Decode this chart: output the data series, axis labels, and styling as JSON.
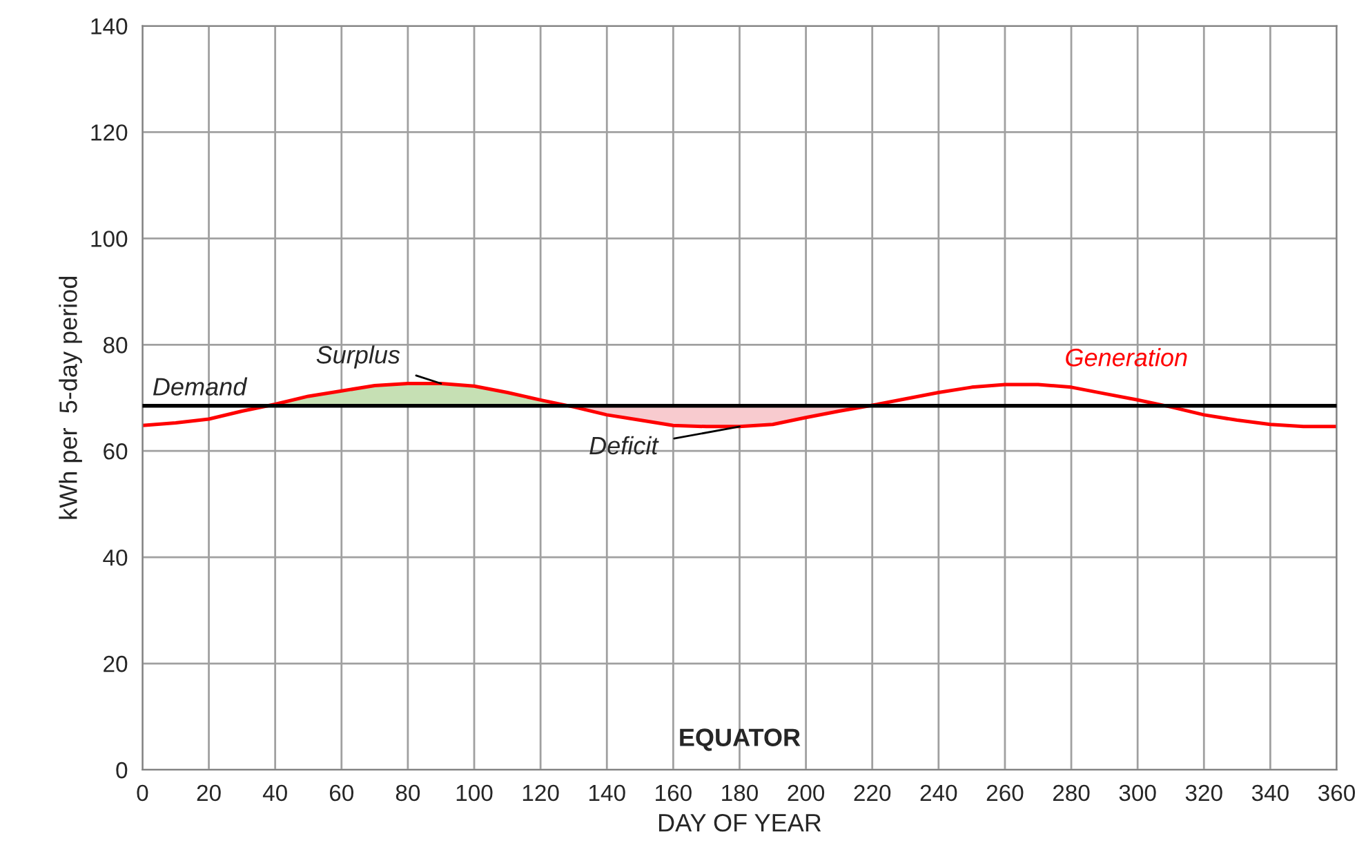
{
  "chart_data": {
    "type": "line",
    "title": "EQUATOR",
    "xlabel": "DAY OF YEAR",
    "ylabel": "kWh per  5-day period",
    "x": [
      0,
      10,
      20,
      30,
      40,
      50,
      60,
      70,
      80,
      90,
      100,
      110,
      120,
      130,
      140,
      150,
      160,
      170,
      180,
      190,
      200,
      210,
      220,
      230,
      240,
      250,
      260,
      270,
      280,
      290,
      300,
      310,
      320,
      330,
      340,
      350,
      360
    ],
    "series": [
      {
        "name": "Generation",
        "color": "#ff0000",
        "values": [
          64.8,
          65.3,
          66,
          67.5,
          68.8,
          70.3,
          71.3,
          72.3,
          72.7,
          72.7,
          72.2,
          71,
          69.6,
          68.3,
          66.8,
          65.8,
          64.8,
          64.6,
          64.6,
          65,
          66.3,
          67.5,
          68.6,
          69.8,
          71,
          72,
          72.5,
          72.5,
          72,
          70.8,
          69.6,
          68.3,
          66.8,
          65.8,
          65,
          64.6,
          64.6
        ]
      },
      {
        "type": "area",
        "color": "#c6e0b4",
        "x": [
          38,
          50,
          60,
          70,
          80,
          90,
          100,
          110,
          120,
          127
        ],
        "values": [
          68.5,
          70.3,
          71.3,
          72.3,
          72.7,
          72.7,
          72.2,
          71,
          69.6,
          68.5
        ]
      },
      {
        "type": "area",
        "color": "#f8cbcf",
        "x": [
          127,
          130,
          140,
          150,
          160,
          170,
          180,
          190,
          200,
          210,
          219
        ],
        "values": [
          68.5,
          68.3,
          66.8,
          65.8,
          64.8,
          64.6,
          64.6,
          65,
          66.3,
          67.5,
          68.5
        ]
      }
    ],
    "ref_lines": [
      {
        "axis": "y",
        "value": 68.5,
        "label": "Demand",
        "color": "#000000"
      }
    ],
    "annotations": [
      {
        "text": "Surplus",
        "x": 90,
        "y": 72.7
      },
      {
        "text": "Deficit",
        "x": 180,
        "y": 64.6
      }
    ],
    "xlim": [
      0,
      360
    ],
    "ylim": [
      0,
      140
    ],
    "xticks": [
      0,
      20,
      40,
      60,
      80,
      100,
      120,
      140,
      160,
      180,
      200,
      220,
      240,
      260,
      280,
      300,
      320,
      340,
      360
    ],
    "yticks": [
      0,
      20,
      40,
      60,
      80,
      100,
      120,
      140
    ],
    "grid": true,
    "legend": false,
    "marker": "none",
    "line_style": "solid"
  }
}
